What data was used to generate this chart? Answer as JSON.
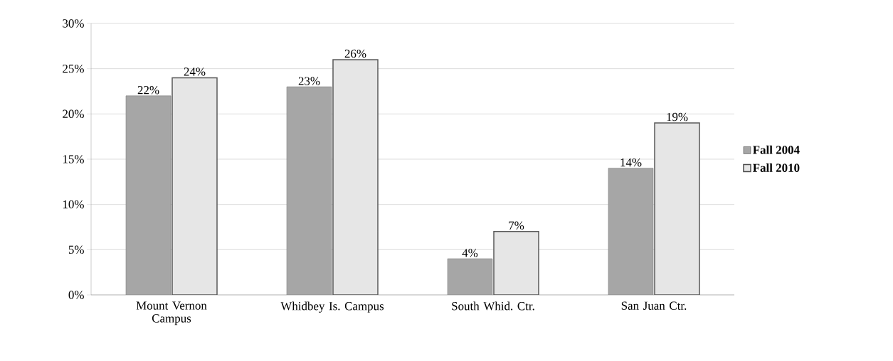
{
  "chart_data": {
    "type": "bar",
    "categories": [
      "Mount Vernon Campus",
      "Whidbey Is. Campus",
      "South Whid. Ctr.",
      "San Juan Ctr."
    ],
    "series": [
      {
        "name": "Fall 2004",
        "color": "#a6a6a6",
        "values": [
          22,
          23,
          4,
          14
        ],
        "value_labels": [
          "22%",
          "23%",
          "4%",
          "14%"
        ]
      },
      {
        "name": "Fall 2010",
        "color": "#e6e6e6",
        "values": [
          24,
          26,
          7,
          19
        ],
        "value_labels": [
          "24%",
          "26%",
          "7%",
          "19%"
        ]
      }
    ],
    "ylim": [
      0,
      30
    ],
    "yticks": [
      {
        "value": 0,
        "label": "0%"
      },
      {
        "value": 5,
        "label": "5%"
      },
      {
        "value": 10,
        "label": "10%"
      },
      {
        "value": 15,
        "label": "15%"
      },
      {
        "value": 20,
        "label": "20%"
      },
      {
        "value": 25,
        "label": "25%"
      },
      {
        "value": 30,
        "label": "30%"
      }
    ],
    "grid": "y",
    "legend": "right"
  }
}
